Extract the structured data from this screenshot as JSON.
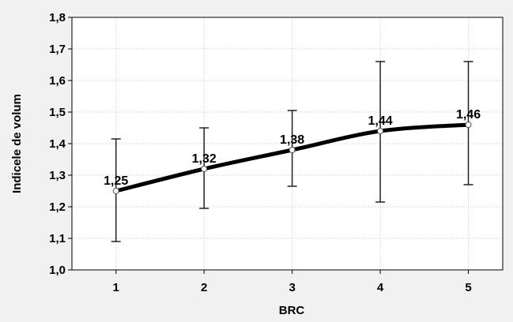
{
  "chart_data": {
    "type": "line",
    "xlabel": "BRC",
    "ylabel": "Indicele de volum",
    "categories": [
      "1",
      "2",
      "3",
      "4",
      "5"
    ],
    "x": [
      1,
      2,
      3,
      4,
      5
    ],
    "ylim": [
      1.0,
      1.8
    ],
    "yticks": [
      "1,0",
      "1,1",
      "1,2",
      "1,3",
      "1,4",
      "1,5",
      "1,6",
      "1,7",
      "1,8"
    ],
    "grid": true,
    "series": [
      {
        "values": [
          1.25,
          1.32,
          1.38,
          1.44,
          1.46
        ],
        "labels": [
          "1,25",
          "1,32",
          "1,38",
          "1,44",
          "1,46"
        ],
        "error_low": [
          1.09,
          1.195,
          1.265,
          1.215,
          1.27
        ],
        "error_high": [
          1.415,
          1.45,
          1.505,
          1.66,
          1.66
        ]
      }
    ]
  }
}
